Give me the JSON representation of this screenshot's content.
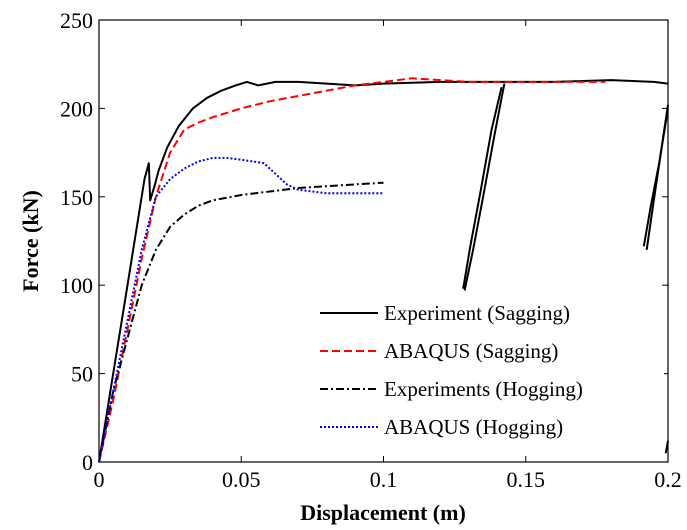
{
  "chart_data": {
    "type": "line",
    "title": "",
    "xlabel": "Displacement (m)",
    "ylabel": "Force (kN)",
    "xlim": [
      0,
      0.2
    ],
    "ylim": [
      0,
      250
    ],
    "xticks": [
      0,
      0.05,
      0.1,
      0.15,
      0.2
    ],
    "xtick_labels": [
      "0",
      "0.05",
      "0.1",
      "0.15",
      "0.2"
    ],
    "yticks": [
      0,
      50,
      100,
      150,
      200,
      250
    ],
    "ytick_labels": [
      "0",
      "50",
      "100",
      "150",
      "200",
      "250"
    ],
    "grid": false,
    "legend_position": "bottom-right",
    "series": [
      {
        "name": "Experiment (Sagging)",
        "color": "#000000",
        "style": "solid",
        "segments": [
          [
            [
              0,
              0
            ],
            [
              0.005,
              50
            ],
            [
              0.01,
              100
            ],
            [
              0.016,
              160
            ],
            [
              0.0175,
              169
            ],
            [
              0.018,
              148
            ],
            [
              0.0195,
              156
            ],
            [
              0.021,
              165
            ],
            [
              0.024,
              178
            ],
            [
              0.028,
              190
            ],
            [
              0.033,
              200
            ],
            [
              0.038,
              206
            ],
            [
              0.043,
              210
            ],
            [
              0.048,
              213
            ],
            [
              0.052,
              215
            ],
            [
              0.056,
              213
            ],
            [
              0.062,
              215
            ],
            [
              0.07,
              215
            ],
            [
              0.08,
              214
            ],
            [
              0.09,
              213
            ],
            [
              0.1,
              214
            ],
            [
              0.12,
              215
            ],
            [
              0.14,
              215
            ],
            [
              0.15,
              215
            ],
            [
              0.16,
              215
            ],
            [
              0.18,
              216
            ],
            [
              0.195,
              215
            ],
            [
              0.2,
              214
            ]
          ],
          [
            [
              0.1285,
              97
            ],
            [
              0.1315,
              120
            ],
            [
              0.135,
              150
            ],
            [
              0.139,
              185
            ],
            [
              0.142,
              210
            ],
            [
              0.1425,
              214
            ]
          ],
          [
            [
              0.128,
              98
            ],
            [
              0.1305,
              122
            ],
            [
              0.134,
              152
            ],
            [
              0.138,
              188
            ],
            [
              0.1415,
              212
            ]
          ],
          [
            [
              0.1915,
              122
            ],
            [
              0.194,
              145
            ],
            [
              0.197,
              170
            ],
            [
              0.2,
              202
            ]
          ],
          [
            [
              0.1925,
              120
            ],
            [
              0.195,
              148
            ],
            [
              0.1975,
              175
            ],
            [
              0.2,
              200
            ]
          ],
          [
            [
              0.1992,
              5
            ],
            [
              0.2,
              12
            ]
          ]
        ]
      },
      {
        "name": "ABAQUS (Sagging)",
        "color": "#ff0000",
        "style": "dashed",
        "points": [
          [
            0,
            0
          ],
          [
            0.005,
            35
          ],
          [
            0.01,
            75
          ],
          [
            0.015,
            115
          ],
          [
            0.02,
            150
          ],
          [
            0.025,
            175
          ],
          [
            0.03,
            188
          ],
          [
            0.035,
            192
          ],
          [
            0.04,
            195
          ],
          [
            0.05,
            200
          ],
          [
            0.06,
            204
          ],
          [
            0.07,
            207
          ],
          [
            0.08,
            210
          ],
          [
            0.09,
            213
          ],
          [
            0.1,
            215
          ],
          [
            0.11,
            217
          ],
          [
            0.12,
            216
          ],
          [
            0.13,
            215
          ],
          [
            0.15,
            215
          ],
          [
            0.17,
            215
          ],
          [
            0.178,
            215
          ]
        ]
      },
      {
        "name": "Experiments (Hogging)",
        "color": "#000000",
        "style": "dashdot",
        "points": [
          [
            0,
            0
          ],
          [
            0.005,
            40
          ],
          [
            0.01,
            70
          ],
          [
            0.015,
            100
          ],
          [
            0.02,
            120
          ],
          [
            0.025,
            133
          ],
          [
            0.03,
            140
          ],
          [
            0.035,
            145
          ],
          [
            0.04,
            148
          ],
          [
            0.05,
            151
          ],
          [
            0.06,
            153
          ],
          [
            0.07,
            155
          ],
          [
            0.08,
            156
          ],
          [
            0.09,
            157
          ],
          [
            0.1,
            158
          ]
        ]
      },
      {
        "name": "ABAQUS (Hogging)",
        "color": "#0000ff",
        "style": "dotted",
        "points": [
          [
            0,
            0
          ],
          [
            0.005,
            40
          ],
          [
            0.01,
            80
          ],
          [
            0.015,
            120
          ],
          [
            0.02,
            150
          ],
          [
            0.025,
            160
          ],
          [
            0.03,
            166
          ],
          [
            0.035,
            170
          ],
          [
            0.04,
            172
          ],
          [
            0.045,
            172
          ],
          [
            0.05,
            171
          ],
          [
            0.058,
            169
          ],
          [
            0.062,
            163
          ],
          [
            0.066,
            157
          ],
          [
            0.07,
            154
          ],
          [
            0.08,
            152
          ],
          [
            0.09,
            152
          ],
          [
            0.1,
            152
          ]
        ]
      }
    ]
  }
}
